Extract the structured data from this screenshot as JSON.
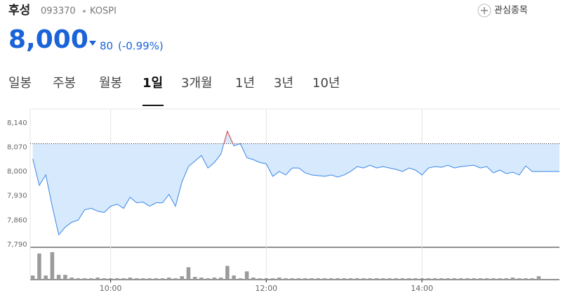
{
  "header": {
    "name": "후성",
    "code": "093370",
    "market": "KOSPI",
    "watch": "관심종목",
    "price": "8,000",
    "change": "80",
    "change_pct": "(-0.99%)",
    "tabs": [
      "일봉",
      "주봉",
      "월봉",
      "1일",
      "3개월",
      "1년",
      "3년",
      "10년"
    ],
    "selected_tab": 3
  },
  "chart_data": {
    "type": "line",
    "x": [
      "09:00",
      "09:05",
      "09:10",
      "09:15",
      "09:20",
      "09:25",
      "09:30",
      "09:35",
      "09:40",
      "09:45",
      "09:50",
      "09:55",
      "10:00",
      "10:05",
      "10:10",
      "10:15",
      "10:20",
      "10:25",
      "10:30",
      "10:35",
      "10:40",
      "10:45",
      "10:50",
      "10:55",
      "11:00",
      "11:05",
      "11:10",
      "11:15",
      "11:20",
      "11:25",
      "11:30",
      "11:35",
      "11:40",
      "11:45",
      "11:50",
      "11:55",
      "12:00",
      "12:05",
      "12:10",
      "12:15",
      "12:20",
      "12:25",
      "12:30",
      "12:35",
      "12:40",
      "12:45",
      "12:50",
      "12:55",
      "13:00",
      "13:05",
      "13:10",
      "13:15",
      "13:20",
      "13:25",
      "13:30",
      "13:35",
      "13:40",
      "13:45",
      "13:50",
      "13:55",
      "14:00",
      "14:05",
      "14:10",
      "14:15",
      "14:20",
      "14:25",
      "14:30",
      "14:35",
      "14:40",
      "14:45",
      "14:50",
      "14:55",
      "15:00",
      "15:05",
      "15:10",
      "15:15",
      "15:20",
      "15:25",
      "15:30"
    ],
    "series": [
      {
        "color": "#3a87e8",
        "above_color": "#e8473a",
        "fill": "#d7e9fc",
        "values": [
          8036,
          7960,
          7990,
          7900,
          7818,
          7840,
          7854,
          7860,
          7890,
          7894,
          7886,
          7882,
          7900,
          7906,
          7894,
          7926,
          7910,
          7912,
          7900,
          7910,
          7910,
          7934,
          7900,
          7970,
          8014,
          8030,
          8046,
          8010,
          8026,
          8050,
          8116,
          8074,
          8080,
          8040,
          8034,
          8026,
          8022,
          7986,
          8000,
          7990,
          8010,
          8010,
          7996,
          7990,
          7988,
          7986,
          7990,
          7984,
          7990,
          8000,
          8014,
          8010,
          8018,
          8010,
          8014,
          8010,
          8006,
          8000,
          8010,
          8004,
          7990,
          8010,
          8014,
          8012,
          8018,
          8010,
          8014,
          8016,
          8018,
          8010,
          8014,
          7996,
          8004,
          7994,
          7998,
          7990,
          8016,
          8000,
          8000
        ]
      },
      {
        "type": "bar",
        "axis": "y2",
        "color": "#9b9b9b",
        "values": [
          6,
          38,
          6,
          40,
          7,
          7,
          3,
          2,
          2,
          2,
          3,
          2,
          2,
          2,
          2,
          3,
          2,
          2,
          2,
          2,
          2,
          3,
          2,
          5,
          18,
          4,
          3,
          2,
          3,
          3,
          20,
          6,
          2,
          12,
          3,
          2,
          2,
          2,
          3,
          2,
          2,
          2,
          2,
          2,
          2,
          2,
          2,
          2,
          2,
          2,
          2,
          2,
          2,
          2,
          2,
          2,
          2,
          2,
          2,
          2,
          2,
          2,
          2,
          2,
          2,
          2,
          2,
          2,
          2,
          2,
          2,
          2,
          2,
          2,
          3,
          2,
          2,
          2,
          5
        ]
      }
    ],
    "reference": 8080,
    "xlim": [
      "08:58",
      "15:46"
    ],
    "xticks": [
      "10:00",
      "12:00",
      "14:00"
    ],
    "ylim": [
      7782,
      8180
    ],
    "yticks": [
      {
        "value": 7790,
        "label": "7,790"
      },
      {
        "value": 7860,
        "label": "7,860"
      },
      {
        "value": 7930,
        "label": "7,930"
      },
      {
        "value": 8000,
        "label": "8,000"
      },
      {
        "value": 8070,
        "label": "8,070"
      },
      {
        "value": 8140,
        "label": "8,140"
      }
    ],
    "y2lim": [
      0,
      45
    ]
  }
}
